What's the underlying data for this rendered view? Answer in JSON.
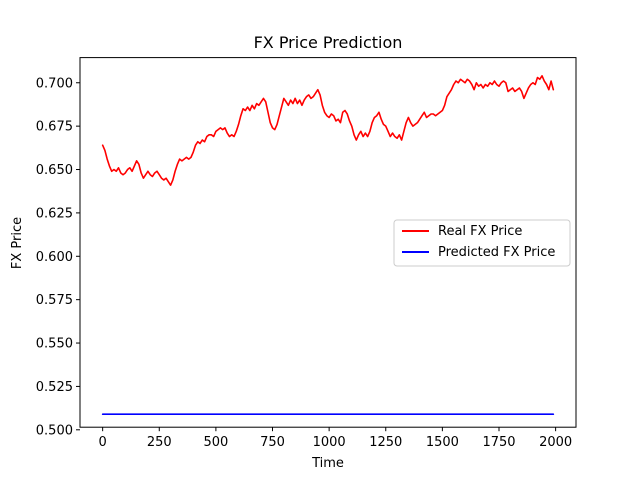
{
  "chart_data": {
    "type": "line",
    "title": "FX Price Prediction",
    "xlabel": "Time",
    "ylabel": "FX Price",
    "xlim": [
      -100,
      2090
    ],
    "ylim": [
      0.5015,
      0.7145
    ],
    "x_ticks": [
      0,
      250,
      500,
      750,
      1000,
      1250,
      1500,
      1750,
      2000
    ],
    "y_ticks": [
      0.5,
      0.525,
      0.55,
      0.575,
      0.6,
      0.625,
      0.65,
      0.675,
      0.7
    ],
    "grid": false,
    "legend_position": "center-right",
    "series": [
      {
        "name": "Real FX Price",
        "color": "#ff0000",
        "points": [
          [
            0,
            0.664
          ],
          [
            10,
            0.661
          ],
          [
            20,
            0.656
          ],
          [
            30,
            0.652
          ],
          [
            40,
            0.649
          ],
          [
            50,
            0.65
          ],
          [
            60,
            0.649
          ],
          [
            70,
            0.651
          ],
          [
            80,
            0.648
          ],
          [
            90,
            0.647
          ],
          [
            100,
            0.648
          ],
          [
            110,
            0.65
          ],
          [
            120,
            0.651
          ],
          [
            130,
            0.649
          ],
          [
            140,
            0.652
          ],
          [
            150,
            0.655
          ],
          [
            160,
            0.653
          ],
          [
            170,
            0.648
          ],
          [
            180,
            0.645
          ],
          [
            190,
            0.647
          ],
          [
            200,
            0.649
          ],
          [
            210,
            0.647
          ],
          [
            220,
            0.646
          ],
          [
            230,
            0.648
          ],
          [
            240,
            0.649
          ],
          [
            250,
            0.647
          ],
          [
            260,
            0.645
          ],
          [
            270,
            0.644
          ],
          [
            280,
            0.645
          ],
          [
            290,
            0.643
          ],
          [
            300,
            0.641
          ],
          [
            310,
            0.644
          ],
          [
            320,
            0.649
          ],
          [
            330,
            0.653
          ],
          [
            340,
            0.656
          ],
          [
            350,
            0.655
          ],
          [
            360,
            0.656
          ],
          [
            370,
            0.657
          ],
          [
            380,
            0.656
          ],
          [
            390,
            0.657
          ],
          [
            400,
            0.66
          ],
          [
            410,
            0.664
          ],
          [
            420,
            0.666
          ],
          [
            430,
            0.665
          ],
          [
            440,
            0.667
          ],
          [
            450,
            0.666
          ],
          [
            460,
            0.669
          ],
          [
            470,
            0.67
          ],
          [
            480,
            0.67
          ],
          [
            490,
            0.669
          ],
          [
            500,
            0.672
          ],
          [
            510,
            0.673
          ],
          [
            520,
            0.674
          ],
          [
            530,
            0.673
          ],
          [
            540,
            0.674
          ],
          [
            550,
            0.671
          ],
          [
            560,
            0.669
          ],
          [
            570,
            0.67
          ],
          [
            580,
            0.669
          ],
          [
            590,
            0.672
          ],
          [
            600,
            0.676
          ],
          [
            610,
            0.681
          ],
          [
            620,
            0.685
          ],
          [
            630,
            0.684
          ],
          [
            640,
            0.686
          ],
          [
            650,
            0.684
          ],
          [
            660,
            0.687
          ],
          [
            670,
            0.685
          ],
          [
            680,
            0.688
          ],
          [
            690,
            0.687
          ],
          [
            700,
            0.689
          ],
          [
            710,
            0.691
          ],
          [
            720,
            0.689
          ],
          [
            730,
            0.683
          ],
          [
            740,
            0.677
          ],
          [
            750,
            0.674
          ],
          [
            760,
            0.673
          ],
          [
            770,
            0.676
          ],
          [
            780,
            0.681
          ],
          [
            790,
            0.686
          ],
          [
            800,
            0.691
          ],
          [
            810,
            0.689
          ],
          [
            820,
            0.687
          ],
          [
            830,
            0.69
          ],
          [
            840,
            0.688
          ],
          [
            850,
            0.691
          ],
          [
            860,
            0.688
          ],
          [
            870,
            0.69
          ],
          [
            880,
            0.687
          ],
          [
            890,
            0.69
          ],
          [
            900,
            0.692
          ],
          [
            910,
            0.693
          ],
          [
            920,
            0.691
          ],
          [
            930,
            0.692
          ],
          [
            940,
            0.694
          ],
          [
            950,
            0.696
          ],
          [
            960,
            0.693
          ],
          [
            970,
            0.687
          ],
          [
            980,
            0.683
          ],
          [
            990,
            0.681
          ],
          [
            1000,
            0.68
          ],
          [
            1010,
            0.682
          ],
          [
            1020,
            0.681
          ],
          [
            1030,
            0.678
          ],
          [
            1040,
            0.679
          ],
          [
            1050,
            0.677
          ],
          [
            1060,
            0.683
          ],
          [
            1070,
            0.684
          ],
          [
            1080,
            0.682
          ],
          [
            1090,
            0.678
          ],
          [
            1100,
            0.675
          ],
          [
            1110,
            0.67
          ],
          [
            1120,
            0.667
          ],
          [
            1130,
            0.67
          ],
          [
            1140,
            0.672
          ],
          [
            1150,
            0.669
          ],
          [
            1160,
            0.671
          ],
          [
            1170,
            0.669
          ],
          [
            1180,
            0.672
          ],
          [
            1190,
            0.677
          ],
          [
            1200,
            0.68
          ],
          [
            1210,
            0.681
          ],
          [
            1220,
            0.683
          ],
          [
            1230,
            0.679
          ],
          [
            1240,
            0.676
          ],
          [
            1250,
            0.675
          ],
          [
            1260,
            0.672
          ],
          [
            1270,
            0.669
          ],
          [
            1280,
            0.671
          ],
          [
            1290,
            0.669
          ],
          [
            1300,
            0.668
          ],
          [
            1310,
            0.67
          ],
          [
            1320,
            0.667
          ],
          [
            1330,
            0.672
          ],
          [
            1340,
            0.677
          ],
          [
            1350,
            0.68
          ],
          [
            1360,
            0.677
          ],
          [
            1370,
            0.675
          ],
          [
            1380,
            0.676
          ],
          [
            1390,
            0.677
          ],
          [
            1400,
            0.679
          ],
          [
            1410,
            0.681
          ],
          [
            1420,
            0.683
          ],
          [
            1430,
            0.68
          ],
          [
            1440,
            0.681
          ],
          [
            1450,
            0.682
          ],
          [
            1460,
            0.682
          ],
          [
            1470,
            0.681
          ],
          [
            1480,
            0.682
          ],
          [
            1490,
            0.683
          ],
          [
            1500,
            0.684
          ],
          [
            1510,
            0.687
          ],
          [
            1520,
            0.692
          ],
          [
            1530,
            0.694
          ],
          [
            1540,
            0.696
          ],
          [
            1550,
            0.699
          ],
          [
            1560,
            0.701
          ],
          [
            1570,
            0.7
          ],
          [
            1580,
            0.702
          ],
          [
            1590,
            0.701
          ],
          [
            1600,
            0.7
          ],
          [
            1610,
            0.702
          ],
          [
            1620,
            0.701
          ],
          [
            1630,
            0.699
          ],
          [
            1640,
            0.696
          ],
          [
            1650,
            0.7
          ],
          [
            1660,
            0.698
          ],
          [
            1670,
            0.699
          ],
          [
            1680,
            0.697
          ],
          [
            1690,
            0.699
          ],
          [
            1700,
            0.698
          ],
          [
            1710,
            0.7
          ],
          [
            1720,
            0.699
          ],
          [
            1730,
            0.701
          ],
          [
            1740,
            0.699
          ],
          [
            1750,
            0.698
          ],
          [
            1760,
            0.7
          ],
          [
            1770,
            0.701
          ],
          [
            1780,
            0.7
          ],
          [
            1790,
            0.695
          ],
          [
            1800,
            0.696
          ],
          [
            1810,
            0.697
          ],
          [
            1820,
            0.695
          ],
          [
            1830,
            0.696
          ],
          [
            1840,
            0.697
          ],
          [
            1850,
            0.695
          ],
          [
            1860,
            0.691
          ],
          [
            1870,
            0.694
          ],
          [
            1880,
            0.697
          ],
          [
            1890,
            0.699
          ],
          [
            1900,
            0.7
          ],
          [
            1910,
            0.699
          ],
          [
            1920,
            0.703
          ],
          [
            1930,
            0.702
          ],
          [
            1940,
            0.704
          ],
          [
            1950,
            0.701
          ],
          [
            1960,
            0.699
          ],
          [
            1970,
            0.696
          ],
          [
            1980,
            0.701
          ],
          [
            1990,
            0.696
          ]
        ]
      },
      {
        "name": "Predicted FX Price",
        "color": "#0000ff",
        "points": [
          [
            0,
            0.509
          ],
          [
            1990,
            0.509
          ]
        ]
      }
    ]
  }
}
